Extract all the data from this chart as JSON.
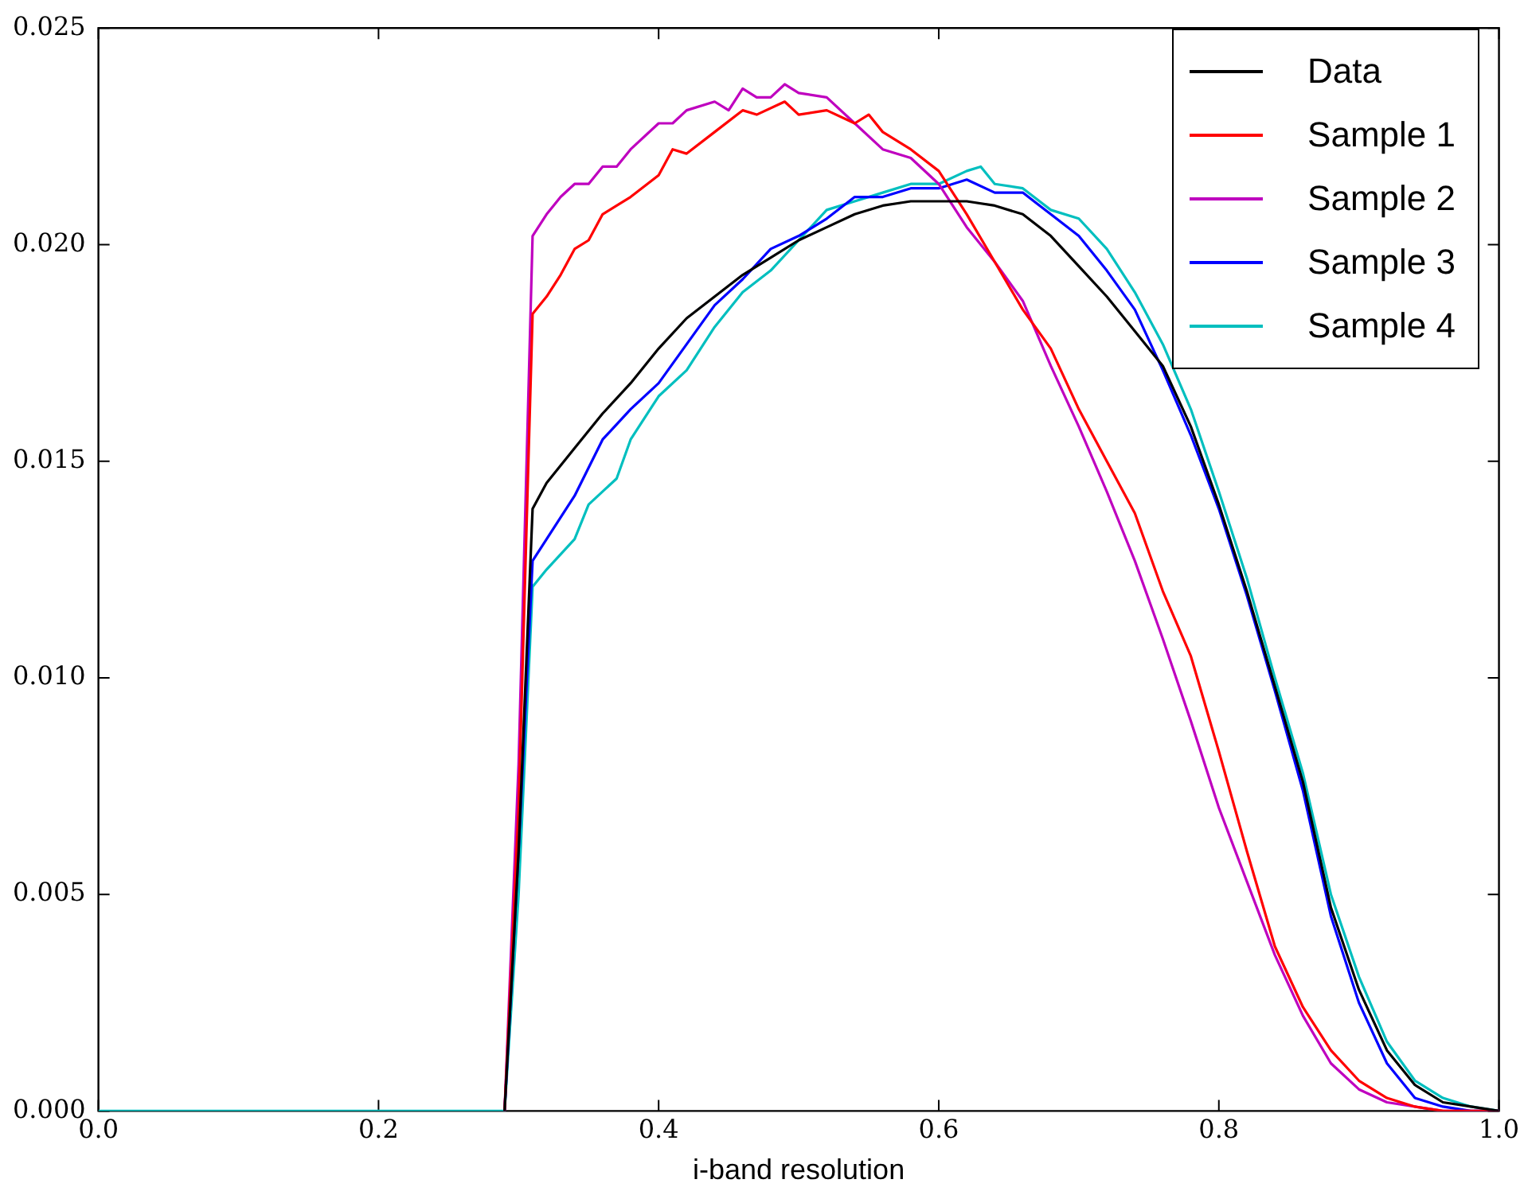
{
  "chart_data": {
    "type": "line",
    "xlabel": "i-band resolution",
    "xlim": [
      0.0,
      1.0
    ],
    "xticks": [
      {
        "value": 0,
        "label": "0.0"
      },
      {
        "value": 0.2,
        "label": "0.2"
      },
      {
        "value": 0.4,
        "label": "0.4"
      },
      {
        "value": 0.6,
        "label": "0.6"
      },
      {
        "value": 0.8,
        "label": "0.8"
      },
      {
        "value": 1,
        "label": "1.0"
      }
    ],
    "ylim": [
      0.0,
      0.025
    ],
    "yticks": [
      {
        "value": 0,
        "label": "0.000"
      },
      {
        "value": 0.005,
        "label": "0.005"
      },
      {
        "value": 0.01,
        "label": "0.010"
      },
      {
        "value": 0.015,
        "label": "0.015"
      },
      {
        "value": 0.02,
        "label": "0.020"
      },
      {
        "value": 0.025,
        "label": "0.025"
      }
    ],
    "grid": false,
    "legend": "top right",
    "marker": "none",
    "line_style": "solid",
    "series": [
      {
        "name": "Data",
        "color": "#000000",
        "x": [
          0.29,
          0.3,
          0.31,
          0.32,
          0.34,
          0.36,
          0.38,
          0.4,
          0.42,
          0.44,
          0.46,
          0.48,
          0.5,
          0.52,
          0.54,
          0.56,
          0.58,
          0.6,
          0.62,
          0.64,
          0.66,
          0.68,
          0.7,
          0.72,
          0.74,
          0.76,
          0.78,
          0.8,
          0.82,
          0.84,
          0.86,
          0.88,
          0.9,
          0.92,
          0.94,
          0.96,
          0.98,
          1.0
        ],
        "values": [
          0,
          0.006,
          0.0139,
          0.0145,
          0.0153,
          0.0161,
          0.0168,
          0.0176,
          0.0183,
          0.0188,
          0.0193,
          0.0197,
          0.0201,
          0.0204,
          0.0207,
          0.0209,
          0.021,
          0.021,
          0.021,
          0.0209,
          0.0207,
          0.0202,
          0.0195,
          0.0188,
          0.018,
          0.0172,
          0.0158,
          0.014,
          0.012,
          0.0098,
          0.0076,
          0.0047,
          0.0028,
          0.0014,
          0.0006,
          0.0002,
          0.0001,
          0
        ]
      },
      {
        "name": "Sample 1",
        "color": "#ff0000",
        "x": [
          0.29,
          0.3,
          0.31,
          0.32,
          0.33,
          0.34,
          0.35,
          0.36,
          0.38,
          0.4,
          0.41,
          0.42,
          0.44,
          0.46,
          0.47,
          0.49,
          0.5,
          0.52,
          0.54,
          0.55,
          0.56,
          0.58,
          0.6,
          0.62,
          0.64,
          0.66,
          0.68,
          0.7,
          0.72,
          0.74,
          0.76,
          0.78,
          0.8,
          0.82,
          0.84,
          0.86,
          0.88,
          0.9,
          0.92,
          0.94,
          0.96,
          1.0
        ],
        "values": [
          0,
          0.007,
          0.0184,
          0.0188,
          0.0193,
          0.0199,
          0.0201,
          0.0207,
          0.0211,
          0.0216,
          0.0222,
          0.0221,
          0.0226,
          0.0231,
          0.023,
          0.0233,
          0.023,
          0.0231,
          0.0228,
          0.023,
          0.0226,
          0.0222,
          0.0217,
          0.0207,
          0.0196,
          0.0185,
          0.0176,
          0.0162,
          0.015,
          0.0138,
          0.012,
          0.0105,
          0.0083,
          0.006,
          0.0038,
          0.0024,
          0.0014,
          0.0007,
          0.0003,
          0.0001,
          0,
          0
        ]
      },
      {
        "name": "Sample 2",
        "color": "#bf00bf",
        "x": [
          0.29,
          0.3,
          0.31,
          0.32,
          0.33,
          0.34,
          0.35,
          0.36,
          0.37,
          0.38,
          0.4,
          0.41,
          0.42,
          0.44,
          0.45,
          0.46,
          0.47,
          0.48,
          0.49,
          0.5,
          0.52,
          0.54,
          0.56,
          0.58,
          0.6,
          0.62,
          0.64,
          0.66,
          0.68,
          0.7,
          0.72,
          0.74,
          0.76,
          0.78,
          0.8,
          0.82,
          0.84,
          0.86,
          0.88,
          0.9,
          0.92,
          0.94,
          0.96,
          1.0
        ],
        "values": [
          0,
          0.008,
          0.0202,
          0.0207,
          0.0211,
          0.0214,
          0.0214,
          0.0218,
          0.0218,
          0.0222,
          0.0228,
          0.0228,
          0.0231,
          0.0233,
          0.0231,
          0.0236,
          0.0234,
          0.0234,
          0.0237,
          0.0235,
          0.0234,
          0.0228,
          0.0222,
          0.022,
          0.0214,
          0.0204,
          0.0196,
          0.0187,
          0.0172,
          0.0158,
          0.0143,
          0.0127,
          0.0109,
          0.009,
          0.007,
          0.0053,
          0.0036,
          0.0022,
          0.0011,
          0.0005,
          0.0002,
          0.0001,
          0,
          0
        ]
      },
      {
        "name": "Sample 3",
        "color": "#0000ff",
        "x": [
          0.29,
          0.3,
          0.31,
          0.32,
          0.34,
          0.36,
          0.38,
          0.4,
          0.42,
          0.44,
          0.46,
          0.48,
          0.5,
          0.52,
          0.54,
          0.56,
          0.58,
          0.6,
          0.62,
          0.64,
          0.66,
          0.68,
          0.7,
          0.72,
          0.74,
          0.76,
          0.78,
          0.8,
          0.82,
          0.84,
          0.86,
          0.88,
          0.9,
          0.92,
          0.94,
          0.96,
          0.98,
          1.0
        ],
        "values": [
          0,
          0.006,
          0.0127,
          0.0132,
          0.0142,
          0.0155,
          0.0162,
          0.0168,
          0.0177,
          0.0186,
          0.0192,
          0.0199,
          0.0202,
          0.0206,
          0.0211,
          0.0211,
          0.0213,
          0.0213,
          0.0215,
          0.0212,
          0.0212,
          0.0207,
          0.0202,
          0.0194,
          0.0185,
          0.0171,
          0.0156,
          0.0139,
          0.0119,
          0.0097,
          0.0074,
          0.0045,
          0.0025,
          0.0011,
          0.0003,
          0.0001,
          0,
          0
        ]
      },
      {
        "name": "Sample 4",
        "color": "#00bfbf",
        "x": [
          0,
          0.28,
          0.29,
          0.3,
          0.31,
          0.32,
          0.34,
          0.35,
          0.37,
          0.38,
          0.4,
          0.42,
          0.44,
          0.46,
          0.48,
          0.5,
          0.52,
          0.54,
          0.56,
          0.58,
          0.6,
          0.62,
          0.63,
          0.64,
          0.66,
          0.68,
          0.7,
          0.72,
          0.74,
          0.76,
          0.78,
          0.8,
          0.82,
          0.84,
          0.86,
          0.88,
          0.9,
          0.92,
          0.94,
          0.96,
          0.98,
          1.0
        ],
        "values": [
          0,
          0,
          0,
          0.005,
          0.0121,
          0.0125,
          0.0132,
          0.014,
          0.0146,
          0.0155,
          0.0165,
          0.0171,
          0.0181,
          0.0189,
          0.0194,
          0.0201,
          0.0208,
          0.021,
          0.0212,
          0.0214,
          0.0214,
          0.0217,
          0.0218,
          0.0214,
          0.0213,
          0.0208,
          0.0206,
          0.0199,
          0.0189,
          0.0177,
          0.0162,
          0.0143,
          0.0123,
          0.01,
          0.0078,
          0.005,
          0.0031,
          0.0016,
          0.0007,
          0.0003,
          0.0001,
          0
        ]
      }
    ]
  }
}
